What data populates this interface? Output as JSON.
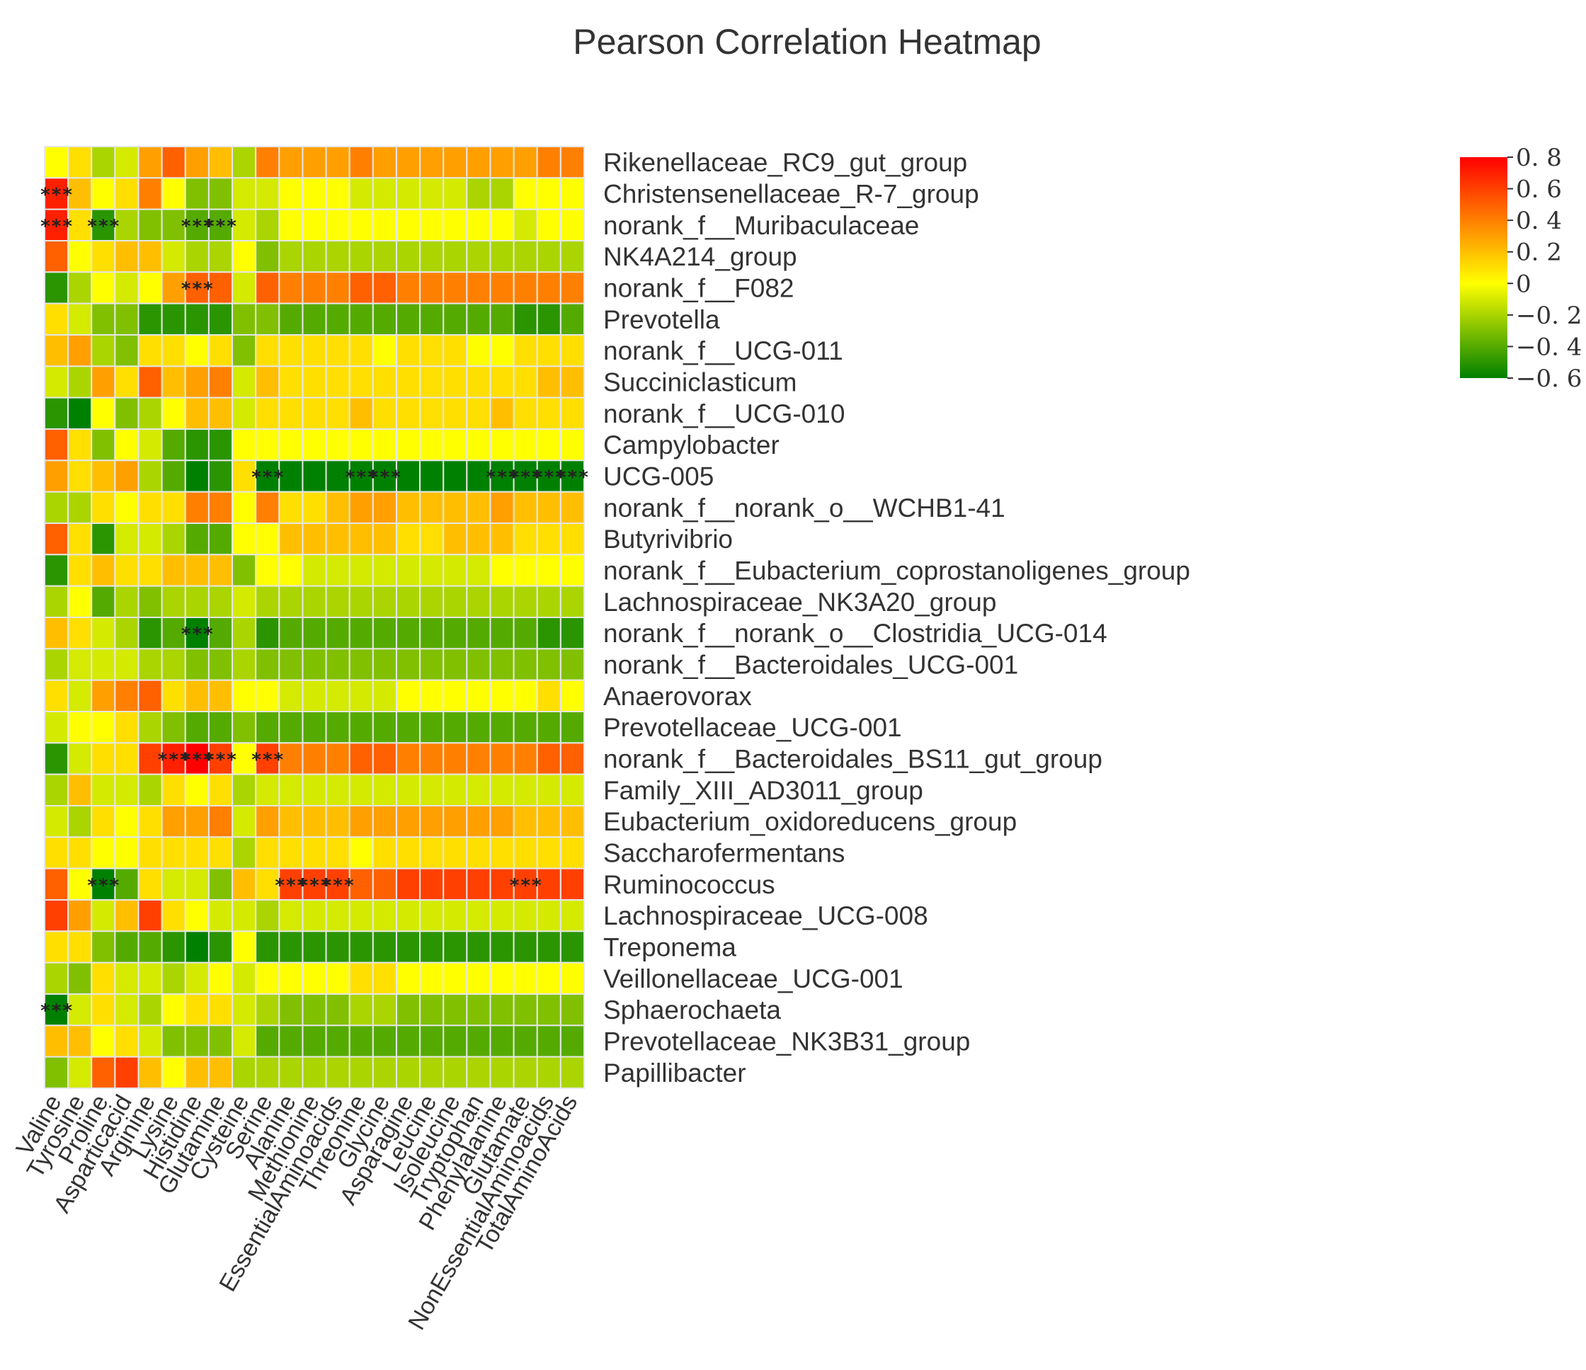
{
  "chart_data": {
    "type": "heatmap",
    "title": "Pearson Correlation Heatmap",
    "columns": [
      "Valine",
      "Tyrosine",
      "Proline",
      "Asparticacid",
      "Arginine",
      "Lysine",
      "Histidine",
      "Glutamine",
      "Cysteine",
      "Serine",
      "Alanine",
      "Methionine",
      "EssentialAminoacids",
      "Threonine",
      "Glycine",
      "Asparagine",
      "Leucine",
      "Isoleucine",
      "Tryptophan",
      "Phenylalanine",
      "Glutamate",
      "NonEssentialAminoacids",
      "TotalAminoAcids"
    ],
    "rows": [
      "Rikenellaceae_RC9_gut_group",
      "Christensenellaceae_R-7_group",
      "norank_f__Muribaculaceae",
      "NK4A214_group",
      "norank_f__F082",
      "Prevotella",
      "norank_f__UCG-011",
      "Succiniclasticum",
      "norank_f__UCG-010",
      "Campylobacter",
      "UCG-005",
      "norank_f__norank_o__WCHB1-41",
      "Butyrivibrio",
      "norank_f__Eubacterium_coprostanoligenes_group",
      "Lachnospiraceae_NK3A20_group",
      "norank_f__norank_o__Clostridia_UCG-014",
      "norank_f__Bacteroidales_UCG-001",
      "Anaerovorax",
      "Prevotellaceae_UCG-001",
      "norank_f__Bacteroidales_BS11_gut_group",
      "Family_XIII_AD3011_group",
      "Eubacterium_oxidoreducens_group",
      "Saccharofermentans",
      "Ruminococcus",
      "Lachnospiraceae_UCG-008",
      "Treponema",
      "Veillonellaceae_UCG-001",
      "Sphaerochaeta",
      "Prevotellaceae_NK3B31_group",
      "Papillibacter"
    ],
    "values": [
      [
        0.0,
        0.1,
        -0.2,
        -0.1,
        0.3,
        0.5,
        0.3,
        0.2,
        -0.2,
        0.4,
        0.3,
        0.3,
        0.3,
        0.4,
        0.3,
        0.3,
        0.3,
        0.3,
        0.3,
        0.3,
        0.3,
        0.4,
        0.4
      ],
      [
        0.7,
        0.2,
        0.0,
        0.1,
        0.4,
        0.0,
        -0.3,
        -0.3,
        -0.1,
        -0.1,
        0.0,
        0.0,
        0.0,
        -0.1,
        -0.1,
        -0.1,
        -0.1,
        -0.1,
        -0.2,
        -0.2,
        0.0,
        0.0,
        0.0
      ],
      [
        0.7,
        0.1,
        -0.5,
        -0.2,
        -0.3,
        -0.3,
        -0.4,
        -0.4,
        -0.1,
        -0.2,
        0.0,
        0.0,
        0.0,
        0.0,
        0.0,
        0.0,
        0.0,
        0.0,
        0.0,
        0.0,
        -0.1,
        0.0,
        0.0
      ],
      [
        0.5,
        0.0,
        0.1,
        0.2,
        0.2,
        -0.1,
        -0.2,
        -0.2,
        0.0,
        -0.3,
        -0.2,
        -0.2,
        -0.2,
        -0.2,
        -0.2,
        -0.2,
        -0.2,
        -0.2,
        -0.2,
        -0.2,
        -0.2,
        -0.2,
        -0.2
      ],
      [
        -0.5,
        -0.2,
        0.0,
        -0.1,
        0.0,
        0.3,
        0.5,
        0.5,
        -0.1,
        0.5,
        0.4,
        0.4,
        0.4,
        0.5,
        0.5,
        0.4,
        0.4,
        0.4,
        0.4,
        0.4,
        0.4,
        0.4,
        0.4
      ],
      [
        0.1,
        -0.1,
        -0.3,
        -0.3,
        -0.5,
        -0.5,
        -0.5,
        -0.5,
        -0.3,
        -0.3,
        -0.4,
        -0.4,
        -0.4,
        -0.4,
        -0.4,
        -0.4,
        -0.4,
        -0.4,
        -0.4,
        -0.4,
        -0.5,
        -0.5,
        -0.4
      ],
      [
        0.2,
        0.3,
        -0.2,
        -0.3,
        0.1,
        0.1,
        0.0,
        0.1,
        -0.3,
        0.1,
        0.1,
        0.1,
        0.1,
        0.1,
        0.0,
        0.1,
        0.1,
        0.1,
        0.0,
        0.0,
        0.1,
        0.1,
        0.1
      ],
      [
        -0.1,
        -0.2,
        0.3,
        0.1,
        0.5,
        0.2,
        0.3,
        0.4,
        -0.1,
        0.2,
        0.1,
        0.1,
        0.1,
        0.1,
        0.1,
        0.1,
        0.1,
        0.1,
        0.1,
        0.1,
        0.1,
        0.2,
        0.2
      ],
      [
        -0.5,
        -0.6,
        0.0,
        -0.3,
        -0.2,
        0.0,
        0.2,
        0.2,
        -0.1,
        0.1,
        0.1,
        0.1,
        0.1,
        0.2,
        0.1,
        0.1,
        0.1,
        0.1,
        0.1,
        0.2,
        0.1,
        0.1,
        0.1
      ],
      [
        0.5,
        0.1,
        -0.3,
        0.0,
        -0.1,
        -0.4,
        -0.5,
        -0.5,
        0.0,
        0.0,
        0.0,
        0.0,
        0.0,
        0.0,
        0.0,
        0.0,
        0.0,
        0.0,
        0.0,
        0.0,
        0.0,
        0.0,
        0.0
      ],
      [
        0.3,
        0.1,
        0.2,
        0.3,
        -0.2,
        -0.4,
        -0.6,
        -0.5,
        0.1,
        -0.6,
        -0.6,
        -0.6,
        -0.6,
        -0.6,
        -0.6,
        -0.6,
        -0.6,
        -0.6,
        -0.6,
        -0.6,
        -0.6,
        -0.6,
        -0.6
      ],
      [
        -0.2,
        -0.2,
        0.1,
        0.0,
        0.1,
        0.1,
        0.4,
        0.4,
        0.0,
        0.4,
        0.1,
        0.1,
        0.2,
        0.3,
        0.3,
        0.2,
        0.2,
        0.2,
        0.2,
        0.3,
        0.2,
        0.2,
        0.2
      ],
      [
        0.5,
        0.1,
        -0.5,
        -0.1,
        -0.1,
        -0.2,
        -0.4,
        -0.4,
        0.0,
        0.0,
        0.2,
        0.2,
        0.2,
        0.2,
        0.2,
        0.1,
        0.1,
        0.2,
        0.2,
        0.2,
        0.1,
        0.1,
        0.1
      ],
      [
        -0.5,
        0.1,
        0.2,
        0.1,
        0.1,
        0.2,
        0.2,
        0.2,
        -0.3,
        0.0,
        0.0,
        -0.1,
        -0.1,
        -0.1,
        -0.1,
        -0.1,
        -0.1,
        -0.1,
        -0.1,
        0.0,
        0.0,
        0.0,
        0.0
      ],
      [
        -0.2,
        0.0,
        -0.4,
        -0.2,
        -0.3,
        -0.2,
        -0.2,
        -0.2,
        -0.1,
        -0.2,
        -0.2,
        -0.2,
        -0.2,
        -0.2,
        -0.2,
        -0.2,
        -0.2,
        -0.2,
        -0.2,
        -0.2,
        -0.2,
        -0.2,
        -0.2
      ],
      [
        0.2,
        0.1,
        -0.1,
        -0.2,
        -0.5,
        -0.4,
        -0.6,
        -0.4,
        -0.2,
        -0.5,
        -0.4,
        -0.4,
        -0.4,
        -0.4,
        -0.4,
        -0.4,
        -0.4,
        -0.4,
        -0.4,
        -0.4,
        -0.4,
        -0.5,
        -0.5
      ],
      [
        -0.2,
        -0.1,
        -0.1,
        -0.1,
        -0.2,
        -0.2,
        -0.3,
        -0.3,
        -0.2,
        -0.3,
        -0.3,
        -0.3,
        -0.3,
        -0.3,
        -0.3,
        -0.3,
        -0.3,
        -0.3,
        -0.3,
        -0.3,
        -0.3,
        -0.3,
        -0.3
      ],
      [
        0.1,
        -0.1,
        0.3,
        0.4,
        0.5,
        0.1,
        0.2,
        0.2,
        0.0,
        0.0,
        -0.1,
        -0.1,
        -0.1,
        -0.1,
        -0.1,
        0.0,
        0.0,
        0.0,
        0.0,
        0.0,
        0.0,
        0.1,
        0.0
      ],
      [
        -0.1,
        0.0,
        0.0,
        0.1,
        -0.2,
        -0.3,
        -0.4,
        -0.4,
        -0.3,
        -0.4,
        -0.4,
        -0.4,
        -0.4,
        -0.4,
        -0.4,
        -0.4,
        -0.4,
        -0.4,
        -0.4,
        -0.4,
        -0.4,
        -0.4,
        -0.4
      ],
      [
        -0.5,
        -0.1,
        0.1,
        0.1,
        0.6,
        0.7,
        0.8,
        0.6,
        0.0,
        0.6,
        0.4,
        0.4,
        0.4,
        0.5,
        0.5,
        0.4,
        0.4,
        0.4,
        0.4,
        0.4,
        0.4,
        0.5,
        0.5
      ],
      [
        -0.2,
        0.2,
        -0.1,
        -0.1,
        -0.2,
        0.1,
        0.0,
        0.1,
        -0.2,
        -0.1,
        -0.1,
        -0.1,
        -0.1,
        -0.1,
        -0.1,
        -0.1,
        -0.1,
        -0.1,
        -0.1,
        -0.1,
        -0.1,
        -0.1,
        -0.1
      ],
      [
        -0.1,
        -0.2,
        0.1,
        0.0,
        0.1,
        0.3,
        0.3,
        0.4,
        -0.1,
        0.3,
        0.2,
        0.2,
        0.2,
        0.3,
        0.3,
        0.3,
        0.3,
        0.3,
        0.3,
        0.3,
        0.2,
        0.2,
        0.2
      ],
      [
        0.1,
        0.1,
        0.0,
        0.0,
        0.1,
        0.1,
        0.1,
        0.1,
        -0.2,
        0.1,
        0.1,
        0.1,
        0.1,
        0.0,
        0.1,
        0.1,
        0.1,
        0.1,
        0.1,
        0.1,
        0.1,
        0.1,
        0.1
      ],
      [
        0.5,
        0.0,
        -0.6,
        -0.4,
        0.1,
        -0.1,
        -0.1,
        -0.3,
        0.2,
        0.1,
        0.6,
        0.6,
        0.6,
        0.5,
        0.5,
        0.6,
        0.6,
        0.6,
        0.6,
        0.6,
        0.6,
        0.6,
        0.6
      ],
      [
        0.6,
        0.3,
        -0.1,
        0.2,
        0.6,
        0.1,
        0.0,
        -0.1,
        -0.1,
        -0.2,
        -0.1,
        -0.1,
        -0.1,
        -0.1,
        -0.1,
        -0.1,
        -0.1,
        -0.1,
        -0.1,
        -0.1,
        -0.1,
        -0.1,
        -0.1
      ],
      [
        0.1,
        0.1,
        -0.3,
        -0.4,
        -0.4,
        -0.5,
        -0.6,
        -0.5,
        0.0,
        -0.5,
        -0.5,
        -0.5,
        -0.5,
        -0.5,
        -0.5,
        -0.5,
        -0.5,
        -0.5,
        -0.5,
        -0.5,
        -0.5,
        -0.5,
        -0.5
      ],
      [
        -0.2,
        -0.3,
        0.1,
        -0.1,
        -0.1,
        -0.2,
        -0.1,
        0.0,
        -0.1,
        0.0,
        0.0,
        0.0,
        0.0,
        0.1,
        0.1,
        0.0,
        0.0,
        0.0,
        0.0,
        0.0,
        0.0,
        0.0,
        0.0
      ],
      [
        -0.6,
        -0.1,
        0.1,
        -0.1,
        -0.2,
        0.0,
        0.1,
        0.1,
        -0.1,
        -0.2,
        -0.3,
        -0.3,
        -0.3,
        -0.2,
        -0.2,
        -0.3,
        -0.3,
        -0.3,
        -0.3,
        -0.3,
        -0.3,
        -0.3,
        -0.3
      ],
      [
        0.2,
        0.2,
        0.0,
        0.1,
        -0.1,
        -0.3,
        -0.3,
        -0.3,
        -0.1,
        -0.4,
        -0.4,
        -0.4,
        -0.4,
        -0.4,
        -0.4,
        -0.4,
        -0.4,
        -0.4,
        -0.4,
        -0.4,
        -0.4,
        -0.4,
        -0.4
      ],
      [
        -0.3,
        -0.1,
        0.5,
        0.6,
        0.2,
        0.0,
        0.2,
        0.2,
        -0.2,
        -0.2,
        -0.2,
        -0.2,
        -0.2,
        -0.2,
        -0.2,
        -0.2,
        -0.2,
        -0.2,
        -0.2,
        -0.2,
        -0.2,
        -0.2,
        -0.2
      ]
    ],
    "significance": [
      {
        "row": 1,
        "col": 0,
        "label": "***"
      },
      {
        "row": 2,
        "col": 0,
        "label": "***"
      },
      {
        "row": 2,
        "col": 2,
        "label": "***"
      },
      {
        "row": 2,
        "col": 6,
        "label": "***"
      },
      {
        "row": 2,
        "col": 7,
        "label": "***"
      },
      {
        "row": 4,
        "col": 6,
        "label": "***"
      },
      {
        "row": 10,
        "col": 9,
        "label": "***"
      },
      {
        "row": 10,
        "col": 13,
        "label": "***"
      },
      {
        "row": 10,
        "col": 14,
        "label": "***"
      },
      {
        "row": 10,
        "col": 19,
        "label": "***"
      },
      {
        "row": 10,
        "col": 20,
        "label": "***"
      },
      {
        "row": 10,
        "col": 21,
        "label": "***"
      },
      {
        "row": 10,
        "col": 22,
        "label": "***"
      },
      {
        "row": 15,
        "col": 6,
        "label": "***"
      },
      {
        "row": 19,
        "col": 5,
        "label": "***"
      },
      {
        "row": 19,
        "col": 6,
        "label": "***"
      },
      {
        "row": 19,
        "col": 7,
        "label": "***"
      },
      {
        "row": 19,
        "col": 9,
        "label": "***"
      },
      {
        "row": 23,
        "col": 2,
        "label": "***"
      },
      {
        "row": 23,
        "col": 10,
        "label": "***"
      },
      {
        "row": 23,
        "col": 11,
        "label": "***"
      },
      {
        "row": 23,
        "col": 12,
        "label": "***"
      },
      {
        "row": 23,
        "col": 20,
        "label": "***"
      },
      {
        "row": 27,
        "col": 0,
        "label": "***"
      }
    ],
    "colorbar": {
      "min": -0.6,
      "max": 0.8,
      "ticks": [
        0.8,
        0.6,
        0.4,
        0.2,
        0,
        -0.2,
        -0.4,
        -0.6
      ],
      "tick_labels": [
        "0. 8",
        "0. 6",
        "0. 4",
        "0. 2",
        "0",
        "−0. 2",
        "−0. 4",
        "−0. 6"
      ],
      "colors": [
        "#008000",
        "#ffff00",
        "#ff0000"
      ]
    },
    "grid": true,
    "legend": "right"
  }
}
